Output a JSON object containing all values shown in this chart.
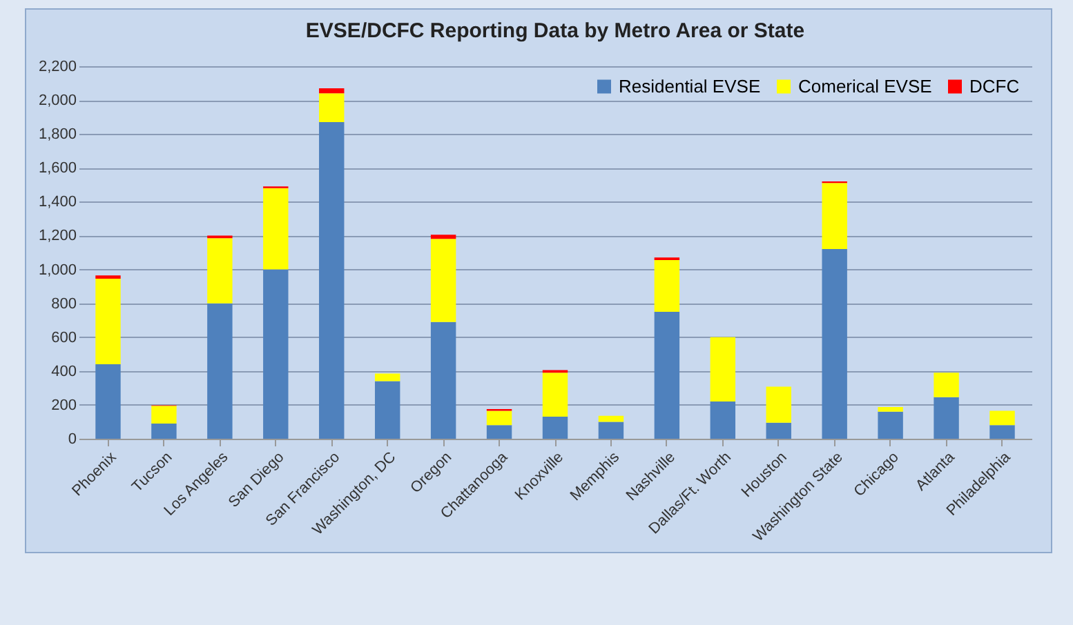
{
  "chart_data": {
    "type": "bar",
    "title": "EVSE/DCFC Reporting Data by Metro Area or State",
    "stacked": true,
    "categories": [
      "Phoenix",
      "Tucson",
      "Los Angeles",
      "San Diego",
      "San Francisco",
      "Washington, DC",
      "Oregon",
      "Chattanooga",
      "Knoxville",
      "Memphis",
      "Nashville",
      "Dallas/Ft. Worth",
      "Houston",
      "Washington State",
      "Chicago",
      "Atlanta",
      "Philadelphia"
    ],
    "series": [
      {
        "name": "Residential EVSE",
        "color": "#4f81bd",
        "values": [
          440,
          90,
          800,
          1000,
          1870,
          340,
          690,
          80,
          130,
          100,
          750,
          220,
          95,
          1120,
          160,
          245,
          80
        ]
      },
      {
        "name": "Comerical EVSE",
        "color": "#ffff00",
        "values": [
          505,
          105,
          385,
          480,
          170,
          45,
          490,
          85,
          260,
          35,
          305,
          380,
          213,
          390,
          27,
          145,
          85
        ]
      },
      {
        "name": "DCFC",
        "color": "#ff0000",
        "values": [
          20,
          3,
          15,
          10,
          30,
          0,
          25,
          10,
          15,
          0,
          15,
          0,
          0,
          10,
          0,
          0,
          0
        ]
      }
    ],
    "ylim": [
      0,
      2200
    ],
    "yticks": [
      0,
      200,
      400,
      600,
      800,
      {
        "value": 1000,
        "label": "1,000"
      },
      {
        "value": 1200,
        "label": "1,200"
      },
      {
        "value": 1400,
        "label": "1,400"
      },
      {
        "value": 1600,
        "label": "1,600"
      },
      {
        "value": 1800,
        "label": "1,800"
      },
      {
        "value": 2000,
        "label": "2,000"
      },
      {
        "value": 2200,
        "label": "2,200"
      }
    ],
    "grid": "y",
    "legend": "top right"
  }
}
